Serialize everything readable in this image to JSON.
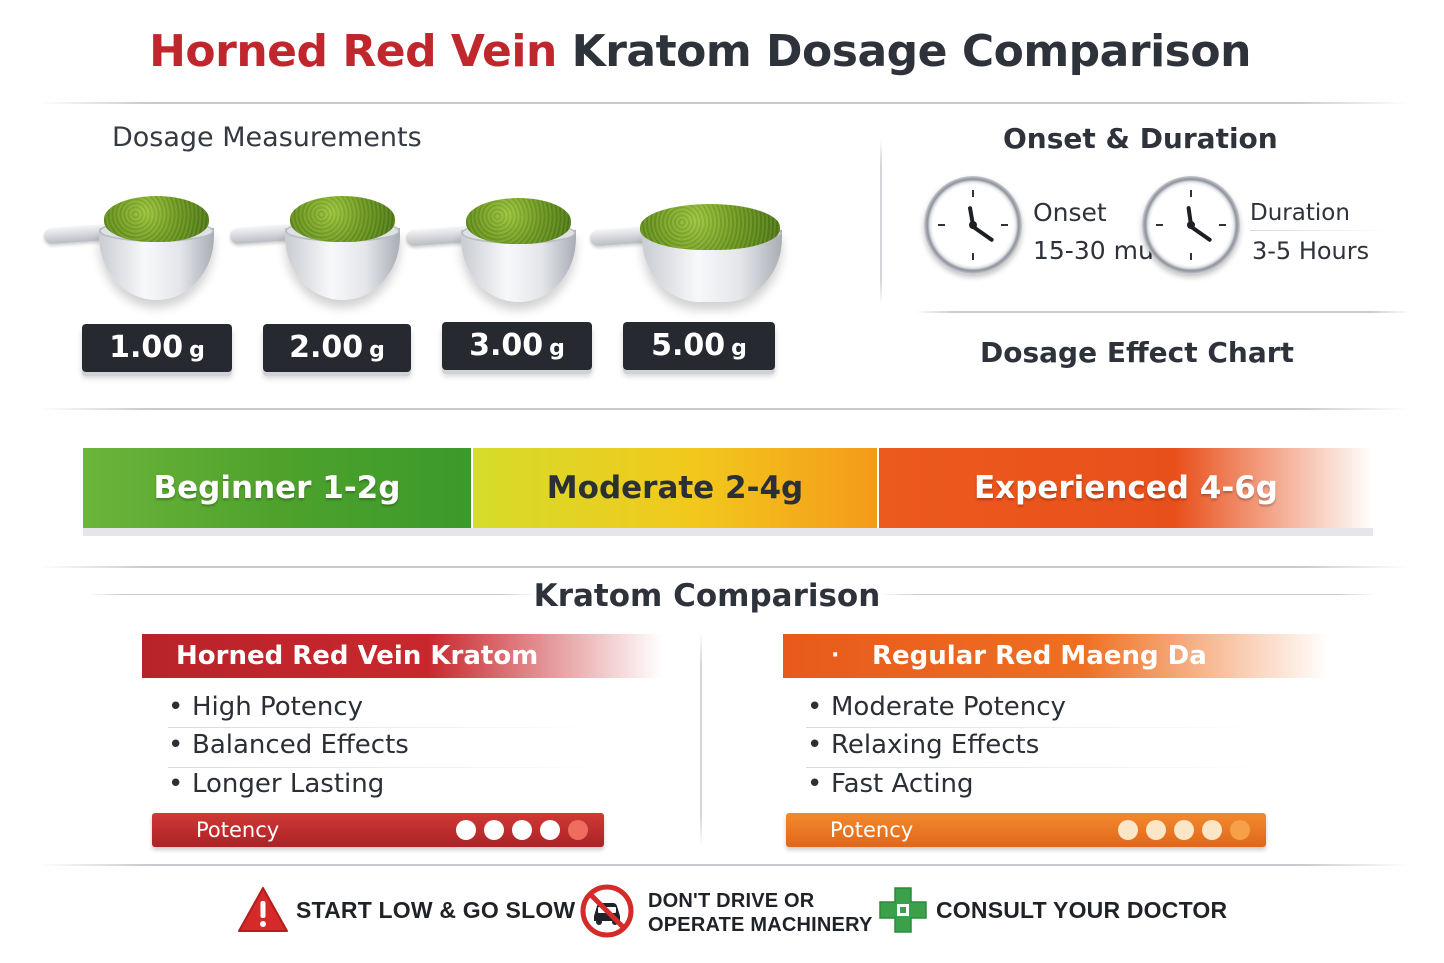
{
  "header": {
    "title_accent": "Horned Red Vein",
    "title_rest": "Kratom Dosage Comparison"
  },
  "dosage": {
    "label": "Dosage Measurements",
    "unit": "g",
    "scoops": [
      {
        "amount": "1.00"
      },
      {
        "amount": "2.00"
      },
      {
        "amount": "3.00"
      },
      {
        "amount": "5.00"
      }
    ]
  },
  "onset_duration": {
    "heading": "Onset & Duration",
    "onset_label": "Onset",
    "onset_value": "15-30 mu.",
    "duration_label": "Duration",
    "duration_value": "3-5 Hours"
  },
  "effect_chart": {
    "heading": "Dosage Effect Chart",
    "segments": [
      {
        "label": "Beginner 1-2g"
      },
      {
        "label": "Moderate 2-4g"
      },
      {
        "label": "Experienced 4-6g"
      }
    ]
  },
  "comparison": {
    "heading": "Kratom Comparison",
    "left": {
      "name": "Horned Red Vein Kratom",
      "features": [
        "High Potency",
        "Balanced Effects",
        "Longer Lasting"
      ],
      "potency_label": "Potency",
      "color": "#c0272d"
    },
    "right": {
      "name": "Regular Red Maeng Da",
      "marker": "·",
      "features": [
        "Moderate Potency",
        "Relaxing Effects",
        "Fast Acting"
      ],
      "potency_label": "Potency",
      "color": "#e8641d"
    }
  },
  "footer": {
    "warning1": "START LOW & GO SLOW",
    "warning2_line1": "DON'T DRIVE OR",
    "warning2_line2": "OPERATE MACHINERY",
    "warning3": "CONSULT YOUR DOCTOR",
    "icons": [
      "warning-triangle-icon",
      "no-driving-icon",
      "medical-cross-icon"
    ]
  }
}
